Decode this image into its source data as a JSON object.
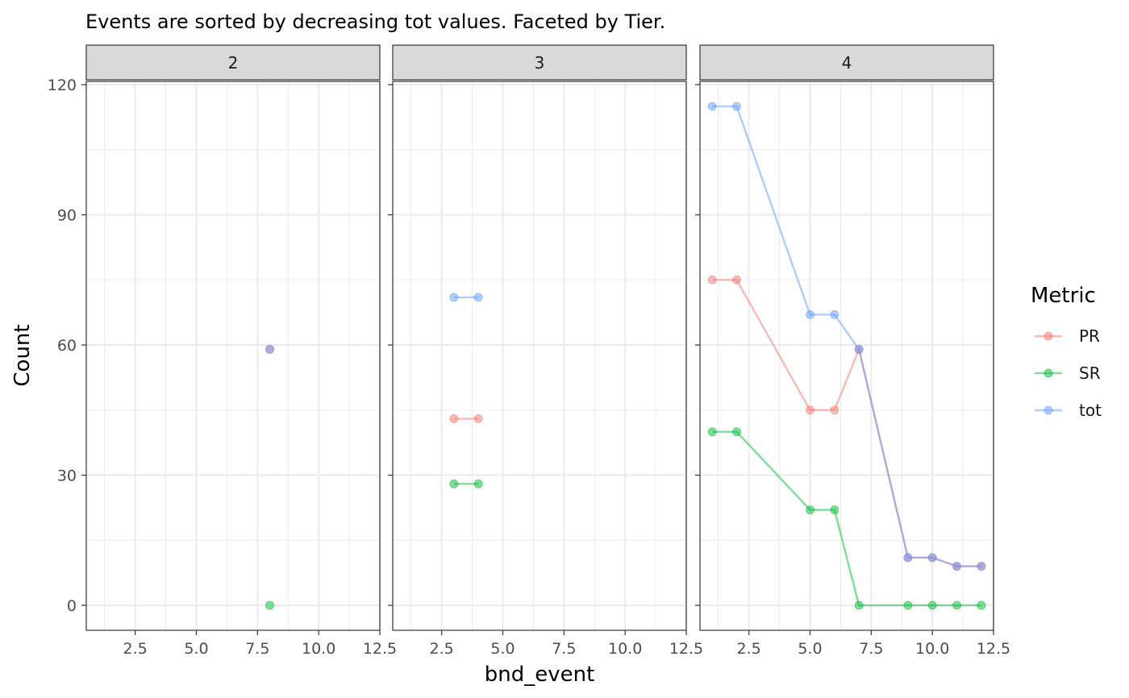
{
  "chart_data": {
    "type": "line",
    "title": "Events are sorted by decreasing tot values. Faceted by Tier.",
    "xlabel": "bnd_event",
    "ylabel": "Count",
    "xlim": [
      0.5,
      12.5
    ],
    "ylim": [
      -5.75,
      120.75
    ],
    "x_ticks": [
      2.5,
      5.0,
      7.5,
      10.0,
      12.5
    ],
    "x_tick_labels": [
      "2.5",
      "5.0",
      "7.5",
      "10.0",
      "12.5"
    ],
    "y_ticks": [
      0,
      30,
      60,
      90,
      120
    ],
    "y_tick_labels": [
      "0",
      "30",
      "60",
      "90",
      "120"
    ],
    "grid": true,
    "legend": {
      "title": "Metric",
      "position": "right",
      "entries": [
        {
          "name": "PR",
          "color": "#F8766D"
        },
        {
          "name": "SR",
          "color": "#00BA38"
        },
        {
          "name": "tot",
          "color": "#619CFF"
        }
      ]
    },
    "facet_label": "Tier",
    "facets": [
      {
        "strip": "2",
        "series": [
          {
            "name": "PR",
            "color": "#F8766D",
            "points": [
              [
                8,
                59
              ]
            ]
          },
          {
            "name": "SR",
            "color": "#00BA38",
            "points": [
              [
                8,
                0
              ]
            ]
          },
          {
            "name": "tot",
            "color": "#619CFF",
            "points": [
              [
                8,
                59
              ]
            ]
          }
        ]
      },
      {
        "strip": "3",
        "series": [
          {
            "name": "PR",
            "color": "#F8766D",
            "points": [
              [
                3,
                43
              ],
              [
                4,
                43
              ]
            ]
          },
          {
            "name": "SR",
            "color": "#00BA38",
            "points": [
              [
                3,
                28
              ],
              [
                4,
                28
              ]
            ]
          },
          {
            "name": "tot",
            "color": "#619CFF",
            "points": [
              [
                3,
                71
              ],
              [
                4,
                71
              ]
            ]
          }
        ]
      },
      {
        "strip": "4",
        "series": [
          {
            "name": "PR",
            "color": "#F8766D",
            "points": [
              [
                1,
                75
              ],
              [
                2,
                75
              ],
              [
                5,
                45
              ],
              [
                6,
                45
              ],
              [
                7,
                59
              ],
              [
                9,
                11
              ],
              [
                10,
                11
              ],
              [
                11,
                9
              ],
              [
                12,
                9
              ]
            ]
          },
          {
            "name": "SR",
            "color": "#00BA38",
            "points": [
              [
                1,
                40
              ],
              [
                2,
                40
              ],
              [
                5,
                22
              ],
              [
                6,
                22
              ],
              [
                7,
                0
              ],
              [
                9,
                0
              ],
              [
                10,
                0
              ],
              [
                11,
                0
              ],
              [
                12,
                0
              ]
            ]
          },
          {
            "name": "tot",
            "color": "#619CFF",
            "points": [
              [
                1,
                115
              ],
              [
                2,
                115
              ],
              [
                5,
                67
              ],
              [
                6,
                67
              ],
              [
                7,
                59
              ],
              [
                9,
                11
              ],
              [
                10,
                11
              ],
              [
                11,
                9
              ],
              [
                12,
                9
              ]
            ]
          }
        ]
      }
    ]
  }
}
